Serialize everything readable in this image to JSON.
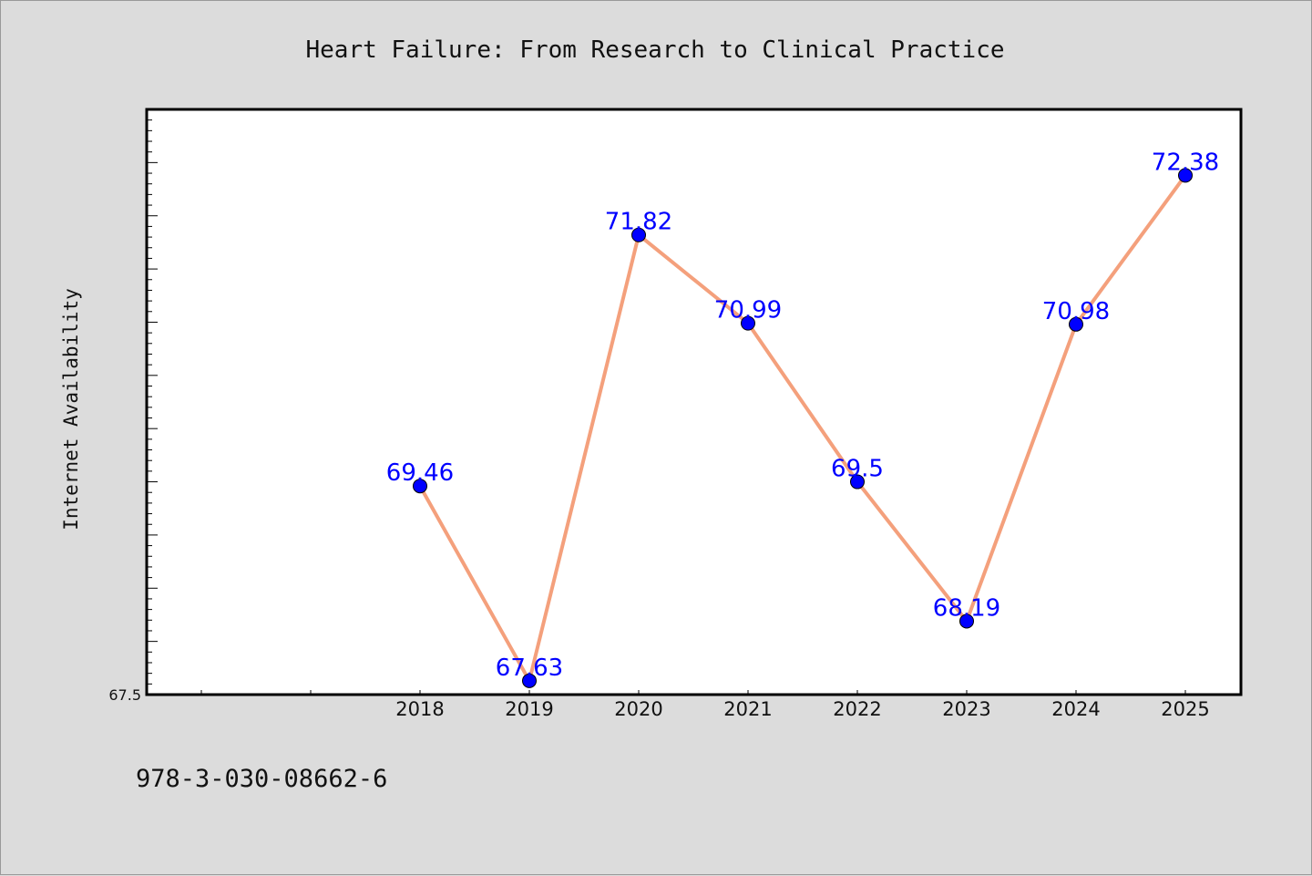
{
  "chart_data": {
    "type": "line",
    "title": "Heart Failure: From Research to Clinical Practice",
    "xlabel": "",
    "ylabel": "Internet Availability",
    "x": [
      "2018",
      "2019",
      "2020",
      "2021",
      "2022",
      "2023",
      "2024",
      "2025"
    ],
    "series": [
      {
        "values": [
          69.46,
          67.63,
          71.82,
          70.99,
          69.5,
          68.19,
          70.98,
          72.38
        ],
        "data_labels": [
          "69.46",
          "67.63",
          "71.82",
          "70.99",
          "69.5",
          "68.19",
          "70.98",
          "72.38"
        ]
      }
    ],
    "ylim": [
      67.5,
      73.0
    ],
    "yticks_labeled": [
      "67.5"
    ],
    "grid": false,
    "line_color": "#f4a07c",
    "marker_color": "#0000ff",
    "label_color": "#0000ff"
  },
  "footer": {
    "isbn": "978-3-030-08662-6"
  }
}
